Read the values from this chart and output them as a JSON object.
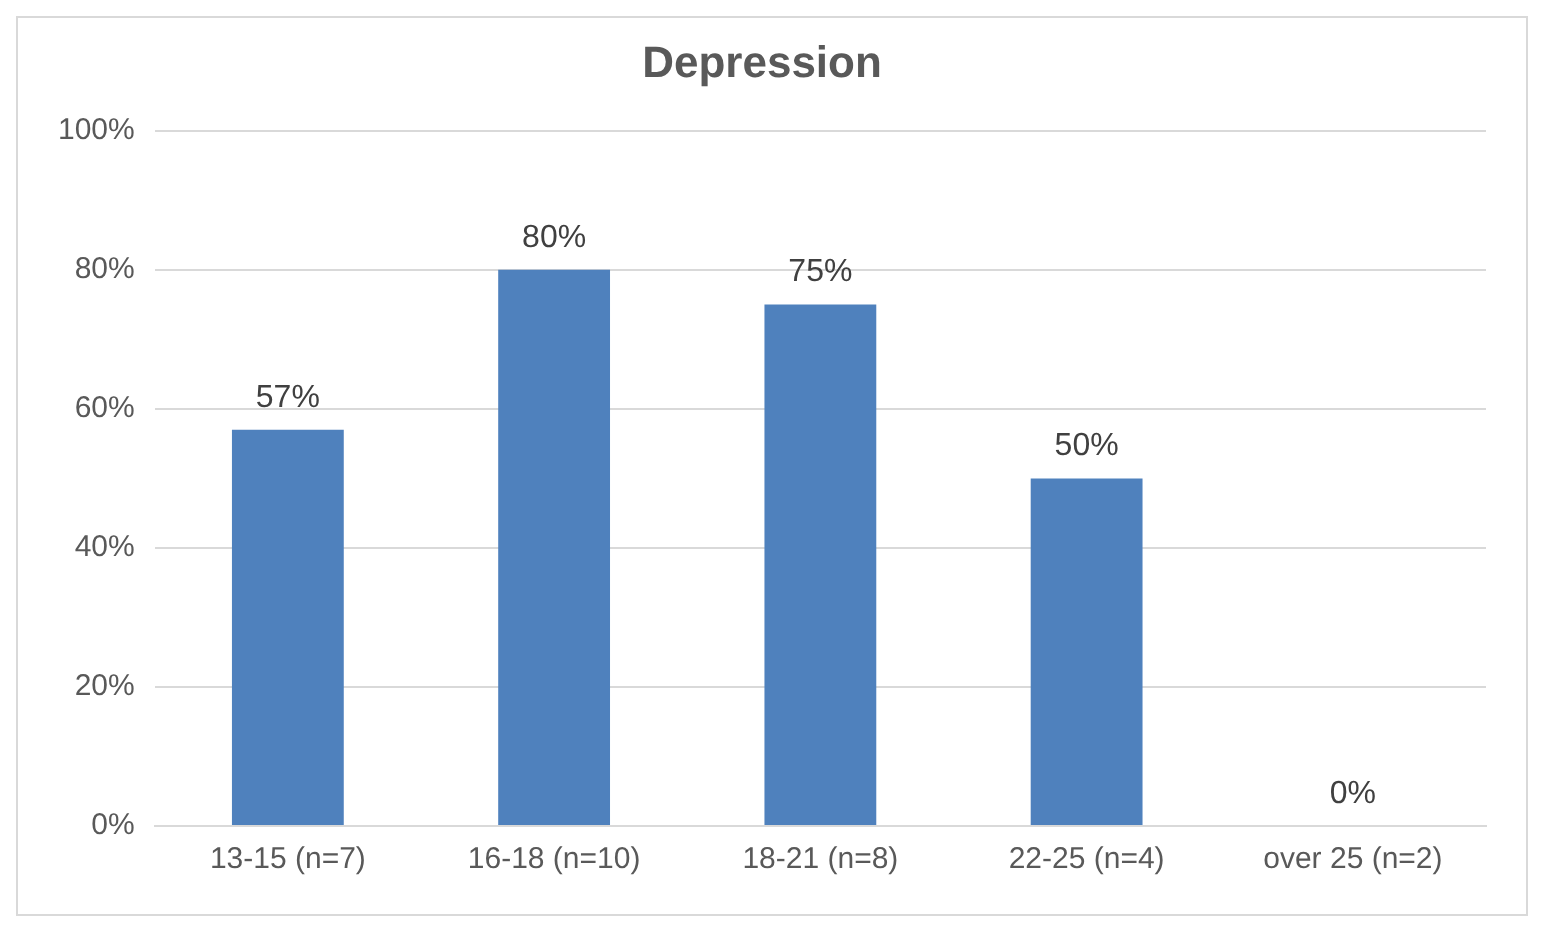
{
  "chart_data": {
    "type": "bar",
    "title": "Depression",
    "categories": [
      "13-15 (n=7)",
      "16-18 (n=10)",
      "18-21 (n=8)",
      "22-25 (n=4)",
      "over 25 (n=2)"
    ],
    "values": [
      57,
      80,
      75,
      50,
      0
    ],
    "value_labels": [
      "57%",
      "80%",
      "75%",
      "50%",
      "0%"
    ],
    "color": "#4f81bd",
    "ylim": [
      0,
      100
    ],
    "yticks": [
      {
        "value": 0,
        "label": "0%"
      },
      {
        "value": 20,
        "label": "20%"
      },
      {
        "value": 40,
        "label": "40%"
      },
      {
        "value": 60,
        "label": "60%"
      },
      {
        "value": 80,
        "label": "80%"
      },
      {
        "value": 100,
        "label": "100%"
      }
    ],
    "grid": "y"
  }
}
